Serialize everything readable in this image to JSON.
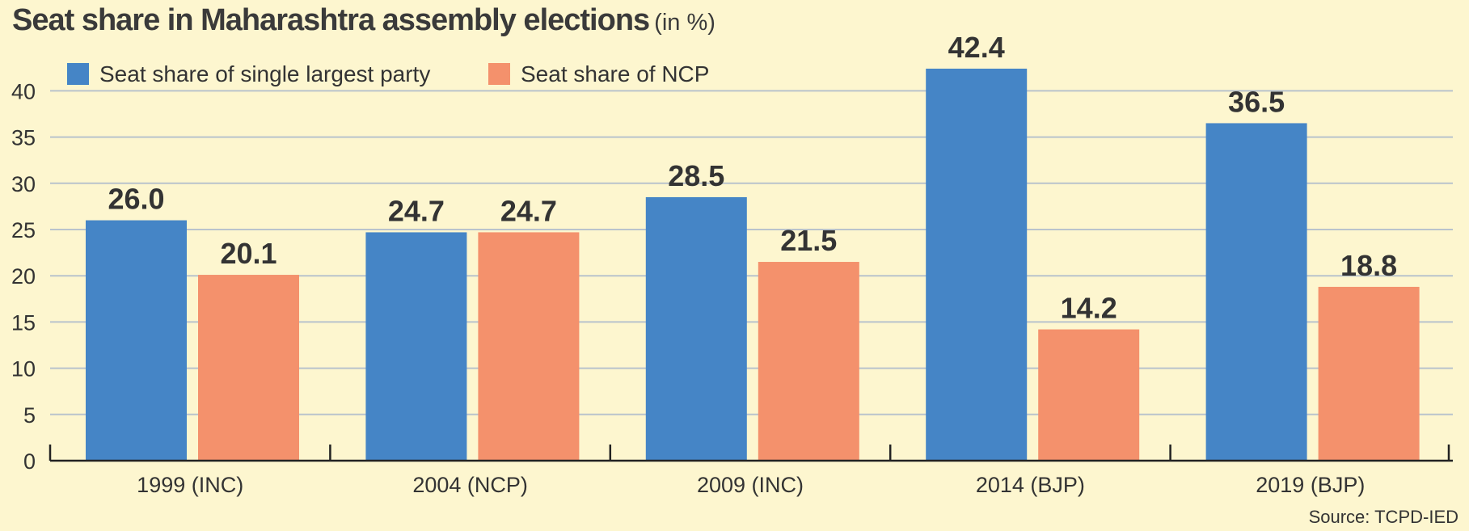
{
  "header": {
    "title": "Seat share in Maharashtra assembly elections",
    "subtitle": "(in %)"
  },
  "source": "Source: TCPD-IED",
  "chart_data": {
    "type": "bar",
    "categories": [
      "1999 (INC)",
      "2004 (NCP)",
      "2009 (INC)",
      "2014 (BJP)",
      "2019 (BJP)"
    ],
    "series": [
      {
        "name": "Seat share of single largest party",
        "color": "#4585c6",
        "values": [
          26.0,
          24.7,
          28.5,
          42.4,
          36.5
        ]
      },
      {
        "name": "Seat share of NCP",
        "color": "#f4916c",
        "values": [
          20.1,
          24.7,
          21.5,
          14.2,
          18.8
        ]
      }
    ],
    "ylim": [
      0,
      45
    ],
    "yticks": [
      0,
      5,
      10,
      15,
      20,
      25,
      30,
      35,
      40
    ],
    "grid": true,
    "legend_position": "top-left",
    "gridline_color": "#b9c3cc"
  }
}
